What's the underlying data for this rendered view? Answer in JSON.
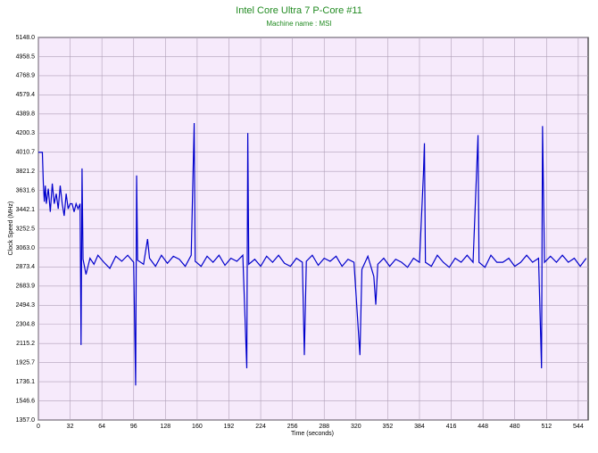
{
  "chart_data": {
    "type": "line",
    "title": "Intel Core Ultra 7 P-Core #11",
    "subtitle": "Machine name : MSI",
    "x_label": "Time (seconds)",
    "y_label": "Clock Speed (MHz)",
    "x": [
      0,
      4,
      5,
      6,
      7,
      8,
      10,
      12,
      14,
      16,
      18,
      20,
      22,
      24,
      26,
      28,
      30,
      32,
      34,
      36,
      38,
      40,
      42,
      43,
      44,
      45,
      48,
      52,
      56,
      60,
      66,
      72,
      78,
      84,
      90,
      96,
      98,
      99,
      100,
      106,
      110,
      112,
      118,
      124,
      130,
      136,
      142,
      148,
      154,
      157,
      158,
      164,
      170,
      176,
      182,
      188,
      194,
      200,
      206,
      210,
      211,
      212,
      218,
      224,
      230,
      236,
      242,
      248,
      254,
      260,
      266,
      268,
      270,
      276,
      282,
      288,
      294,
      300,
      306,
      312,
      318,
      324,
      326,
      332,
      338,
      340,
      342,
      348,
      354,
      360,
      366,
      372,
      378,
      384,
      388,
      389,
      390,
      396,
      402,
      408,
      414,
      420,
      426,
      432,
      438,
      443,
      444,
      450,
      456,
      462,
      468,
      474,
      480,
      486,
      492,
      498,
      504,
      507,
      508,
      510,
      516,
      522,
      528,
      534,
      540,
      546,
      552
    ],
    "series": [
      {
        "name": "Clock Speed",
        "color": "#0000cc",
        "values": [
          4010,
          4010,
          3700,
          3520,
          3680,
          3500,
          3650,
          3420,
          3700,
          3500,
          3600,
          3450,
          3680,
          3500,
          3380,
          3600,
          3450,
          3500,
          3500,
          3420,
          3500,
          3450,
          3500,
          2100,
          3850,
          2950,
          2800,
          2960,
          2900,
          2990,
          2920,
          2860,
          2980,
          2930,
          2990,
          2920,
          1700,
          3780,
          2940,
          2900,
          3150,
          2960,
          2880,
          2990,
          2910,
          2980,
          2950,
          2880,
          2990,
          4300,
          2930,
          2880,
          2980,
          2920,
          2990,
          2890,
          2960,
          2930,
          2990,
          1870,
          4200,
          2900,
          2950,
          2880,
          2980,
          2920,
          2990,
          2910,
          2880,
          2960,
          2920,
          2000,
          2930,
          2990,
          2890,
          2960,
          2930,
          2980,
          2880,
          2950,
          2920,
          2000,
          2850,
          2980,
          2780,
          2500,
          2900,
          2960,
          2880,
          2950,
          2920,
          2870,
          2960,
          2920,
          3800,
          4100,
          2920,
          2880,
          2990,
          2920,
          2870,
          2960,
          2920,
          2990,
          2920,
          4180,
          2920,
          2870,
          2990,
          2920,
          2920,
          2960,
          2880,
          2920,
          2990,
          2920,
          2960,
          1870,
          4270,
          2920,
          2980,
          2920,
          2990,
          2920,
          2960,
          2880,
          2960
        ]
      }
    ],
    "xlim": [
      0,
      554
    ],
    "xticks": [
      0,
      32,
      64,
      96,
      128,
      160,
      192,
      224,
      256,
      288,
      320,
      352,
      384,
      416,
      448,
      480,
      512,
      544
    ],
    "ylim": [
      1357,
      5148
    ],
    "yticks": [
      {
        "value": 1357,
        "label": "1357.0"
      },
      1546.6,
      1736.1,
      1925.7,
      2115.2,
      2304.8,
      2494.3,
      2683.9,
      2873.4,
      {
        "value": 3063,
        "label": "3063.0"
      },
      3252.5,
      3442.1,
      3631.6,
      3821.2,
      4010.7,
      4200.3,
      4389.8,
      4579.4,
      4768.9,
      4958.5,
      {
        "value": 5148,
        "label": "5148.0"
      }
    ],
    "grid": true,
    "background": "#f6eafb"
  }
}
